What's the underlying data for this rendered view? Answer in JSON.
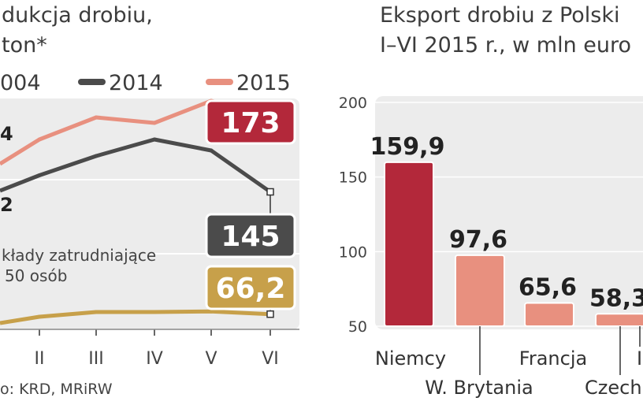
{
  "left_panel": {
    "title_line1": "dukcja drobiu,",
    "title_line2": "ton*",
    "legend": [
      {
        "label": "004",
        "color": "#c7a04a"
      },
      {
        "label": "2014",
        "color": "#4b4b4b"
      },
      {
        "label": "2015",
        "color": "#e8907f"
      }
    ],
    "note_line1": "kłady zatrudniające",
    "note_line2": "50 osób",
    "edge_label_1": "4",
    "edge_label_2": "2",
    "source": "o: KRD, MRiRW"
  },
  "right_panel": {
    "title_line1": "Eksport drobiu z Polski",
    "title_line2": "I–VI 2015 r., w mln euro"
  },
  "colors": {
    "panel_bg": "#ececec",
    "dark_red": "#b3283a",
    "salmon": "#e8907f",
    "dark_gray": "#4b4b4b",
    "gold": "#c7a04a"
  },
  "chart_data": [
    {
      "type": "line",
      "x": [
        "II",
        "III",
        "IV",
        "V",
        "VI"
      ],
      "series": [
        {
          "name": "2015",
          "color": "#e8907f",
          "values": [
            164,
            172,
            170,
            178,
            173
          ]
        },
        {
          "name": "2014",
          "color": "#4b4b4b",
          "values": [
            151,
            158,
            164,
            160,
            145
          ]
        },
        {
          "name": "004",
          "color": "#c7a04a",
          "values": [
            64,
            68,
            68,
            68.5,
            66.2
          ]
        }
      ],
      "callouts": [
        {
          "series": "2015",
          "label": "173",
          "color": "#b3283a"
        },
        {
          "series": "2014",
          "label": "145",
          "color": "#4b4b4b"
        },
        {
          "series": "004",
          "label": "66,2",
          "color": "#c7a04a"
        }
      ]
    },
    {
      "type": "bar",
      "categories": [
        "Niemcy",
        "W. Brytania",
        "Francja",
        "Czech"
      ],
      "values": [
        159.9,
        97.6,
        65.6,
        58.3
      ],
      "value_labels": [
        "159,9",
        "97,6",
        "65,6",
        "58,3"
      ],
      "colors": [
        "#b3283a",
        "#e8907f",
        "#e8907f",
        "#e8907f"
      ],
      "ylim": [
        50,
        200
      ],
      "yticks": [
        "50",
        "100",
        "150",
        "200"
      ],
      "extra_category_fragment": "I"
    }
  ]
}
